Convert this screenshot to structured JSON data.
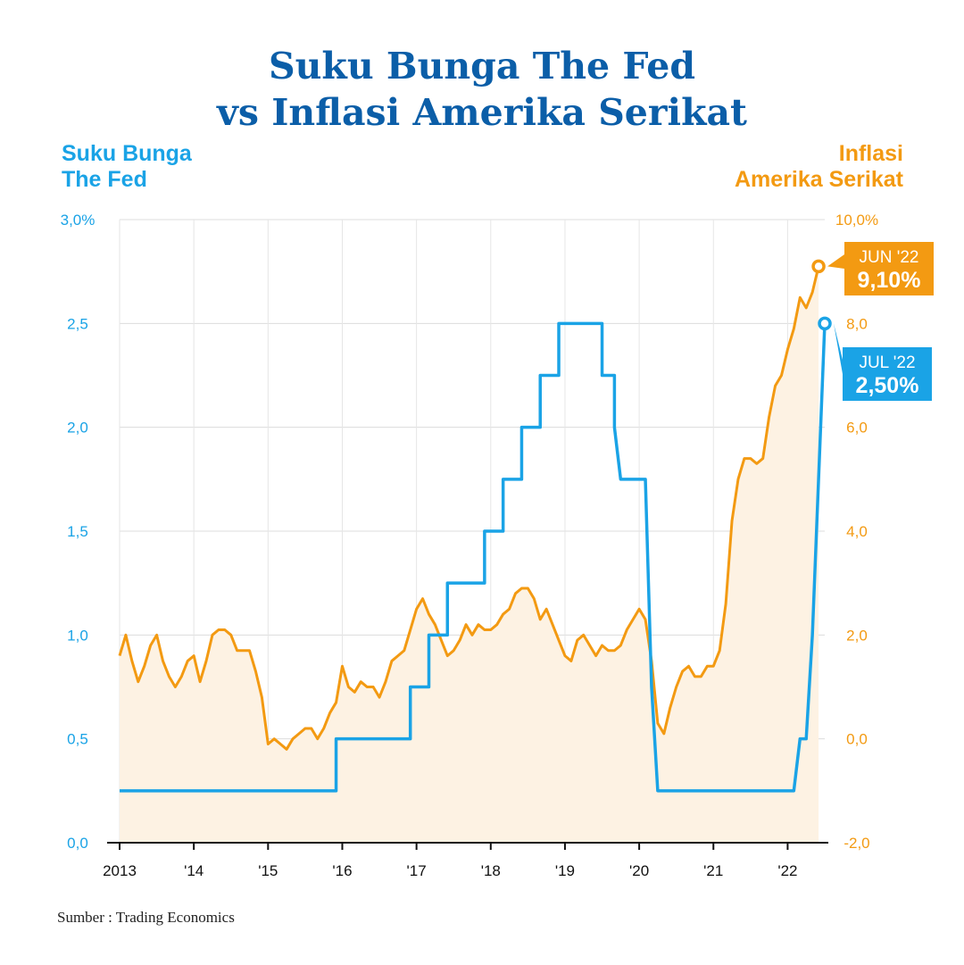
{
  "title_line1": "Suku Bunga The Fed",
  "title_line2": "vs Inflasi Amerika Serikat",
  "left_axis_title": [
    "Suku Bunga",
    "The Fed"
  ],
  "right_axis_title": [
    "Inflasi",
    "Amerika Serikat"
  ],
  "source": "Sumber : Trading Economics",
  "colors": {
    "fed": "#1aa3e6",
    "inflation": "#f39a12",
    "inflation_fill": "#fdf2e3",
    "title": "#0b5ea8"
  },
  "chart_data": {
    "type": "line",
    "x_start": "2013-01",
    "x_end": "2022-07",
    "x_ticks": [
      {
        "label": "2013",
        "year": 2013
      },
      {
        "label": "'14",
        "year": 2014
      },
      {
        "label": "'15",
        "year": 2015
      },
      {
        "label": "'16",
        "year": 2016
      },
      {
        "label": "'17",
        "year": 2017
      },
      {
        "label": "'18",
        "year": 2018
      },
      {
        "label": "'19",
        "year": 2019
      },
      {
        "label": "'20",
        "year": 2020
      },
      {
        "label": "'21",
        "year": 2021
      },
      {
        "label": "'22",
        "year": 2022
      }
    ],
    "y_left": {
      "ticks": [
        "0,0",
        "0,5",
        "1,0",
        "1,5",
        "2,0",
        "2,5",
        "3,0%"
      ],
      "ylim": [
        0,
        3
      ]
    },
    "y_right": {
      "ticks": [
        "-2,0",
        "0,0",
        "2,0",
        "4,0",
        "6,0",
        "8,0",
        "10,0%"
      ],
      "ylim": [
        -2,
        10
      ]
    },
    "grid": true,
    "series": [
      {
        "name": "Suku Bunga The Fed",
        "axis": "left",
        "points": [
          [
            "2013-01",
            0.25
          ],
          [
            "2015-12",
            0.25
          ],
          [
            "2015-12",
            0.5
          ],
          [
            "2016-12",
            0.5
          ],
          [
            "2016-12",
            0.75
          ],
          [
            "2017-03",
            0.75
          ],
          [
            "2017-03",
            1.0
          ],
          [
            "2017-06",
            1.0
          ],
          [
            "2017-06",
            1.25
          ],
          [
            "2017-12",
            1.25
          ],
          [
            "2017-12",
            1.5
          ],
          [
            "2018-03",
            1.5
          ],
          [
            "2018-03",
            1.75
          ],
          [
            "2018-06",
            1.75
          ],
          [
            "2018-06",
            2.0
          ],
          [
            "2018-09",
            2.0
          ],
          [
            "2018-09",
            2.25
          ],
          [
            "2018-12",
            2.25
          ],
          [
            "2018-12",
            2.5
          ],
          [
            "2019-07",
            2.5
          ],
          [
            "2019-07",
            2.25
          ],
          [
            "2019-09",
            2.25
          ],
          [
            "2019-09",
            2.0
          ],
          [
            "2019-10",
            1.75
          ],
          [
            "2020-02",
            1.75
          ],
          [
            "2020-03",
            0.75
          ],
          [
            "2020-04",
            0.25
          ],
          [
            "2022-02",
            0.25
          ],
          [
            "2022-03",
            0.5
          ],
          [
            "2022-04",
            0.5
          ],
          [
            "2022-05",
            1.0
          ],
          [
            "2022-06",
            1.75
          ],
          [
            "2022-07",
            2.5
          ]
        ]
      },
      {
        "name": "Inflasi Amerika Serikat",
        "axis": "right",
        "points": [
          [
            "2013-01",
            1.6
          ],
          [
            "2013-02",
            2.0
          ],
          [
            "2013-03",
            1.5
          ],
          [
            "2013-04",
            1.1
          ],
          [
            "2013-05",
            1.4
          ],
          [
            "2013-06",
            1.8
          ],
          [
            "2013-07",
            2.0
          ],
          [
            "2013-08",
            1.5
          ],
          [
            "2013-09",
            1.2
          ],
          [
            "2013-10",
            1.0
          ],
          [
            "2013-11",
            1.2
          ],
          [
            "2013-12",
            1.5
          ],
          [
            "2014-01",
            1.6
          ],
          [
            "2014-02",
            1.1
          ],
          [
            "2014-03",
            1.5
          ],
          [
            "2014-04",
            2.0
          ],
          [
            "2014-05",
            2.1
          ],
          [
            "2014-06",
            2.1
          ],
          [
            "2014-07",
            2.0
          ],
          [
            "2014-08",
            1.7
          ],
          [
            "2014-09",
            1.7
          ],
          [
            "2014-10",
            1.7
          ],
          [
            "2014-11",
            1.3
          ],
          [
            "2014-12",
            0.8
          ],
          [
            "2015-01",
            -0.1
          ],
          [
            "2015-02",
            0.0
          ],
          [
            "2015-03",
            -0.1
          ],
          [
            "2015-04",
            -0.2
          ],
          [
            "2015-05",
            0.0
          ],
          [
            "2015-06",
            0.1
          ],
          [
            "2015-07",
            0.2
          ],
          [
            "2015-08",
            0.2
          ],
          [
            "2015-09",
            0.0
          ],
          [
            "2015-10",
            0.2
          ],
          [
            "2015-11",
            0.5
          ],
          [
            "2015-12",
            0.7
          ],
          [
            "2016-01",
            1.4
          ],
          [
            "2016-02",
            1.0
          ],
          [
            "2016-03",
            0.9
          ],
          [
            "2016-04",
            1.1
          ],
          [
            "2016-05",
            1.0
          ],
          [
            "2016-06",
            1.0
          ],
          [
            "2016-07",
            0.8
          ],
          [
            "2016-08",
            1.1
          ],
          [
            "2016-09",
            1.5
          ],
          [
            "2016-10",
            1.6
          ],
          [
            "2016-11",
            1.7
          ],
          [
            "2016-12",
            2.1
          ],
          [
            "2017-01",
            2.5
          ],
          [
            "2017-02",
            2.7
          ],
          [
            "2017-03",
            2.4
          ],
          [
            "2017-04",
            2.2
          ],
          [
            "2017-05",
            1.9
          ],
          [
            "2017-06",
            1.6
          ],
          [
            "2017-07",
            1.7
          ],
          [
            "2017-08",
            1.9
          ],
          [
            "2017-09",
            2.2
          ],
          [
            "2017-10",
            2.0
          ],
          [
            "2017-11",
            2.2
          ],
          [
            "2017-12",
            2.1
          ],
          [
            "2018-01",
            2.1
          ],
          [
            "2018-02",
            2.2
          ],
          [
            "2018-03",
            2.4
          ],
          [
            "2018-04",
            2.5
          ],
          [
            "2018-05",
            2.8
          ],
          [
            "2018-06",
            2.9
          ],
          [
            "2018-07",
            2.9
          ],
          [
            "2018-08",
            2.7
          ],
          [
            "2018-09",
            2.3
          ],
          [
            "2018-10",
            2.5
          ],
          [
            "2018-11",
            2.2
          ],
          [
            "2018-12",
            1.9
          ],
          [
            "2019-01",
            1.6
          ],
          [
            "2019-02",
            1.5
          ],
          [
            "2019-03",
            1.9
          ],
          [
            "2019-04",
            2.0
          ],
          [
            "2019-05",
            1.8
          ],
          [
            "2019-06",
            1.6
          ],
          [
            "2019-07",
            1.8
          ],
          [
            "2019-08",
            1.7
          ],
          [
            "2019-09",
            1.7
          ],
          [
            "2019-10",
            1.8
          ],
          [
            "2019-11",
            2.1
          ],
          [
            "2019-12",
            2.3
          ],
          [
            "2020-01",
            2.5
          ],
          [
            "2020-02",
            2.3
          ],
          [
            "2020-03",
            1.5
          ],
          [
            "2020-04",
            0.3
          ],
          [
            "2020-05",
            0.1
          ],
          [
            "2020-06",
            0.6
          ],
          [
            "2020-07",
            1.0
          ],
          [
            "2020-08",
            1.3
          ],
          [
            "2020-09",
            1.4
          ],
          [
            "2020-10",
            1.2
          ],
          [
            "2020-11",
            1.2
          ],
          [
            "2020-12",
            1.4
          ],
          [
            "2021-01",
            1.4
          ],
          [
            "2021-02",
            1.7
          ],
          [
            "2021-03",
            2.6
          ],
          [
            "2021-04",
            4.2
          ],
          [
            "2021-05",
            5.0
          ],
          [
            "2021-06",
            5.4
          ],
          [
            "2021-07",
            5.4
          ],
          [
            "2021-08",
            5.3
          ],
          [
            "2021-09",
            5.4
          ],
          [
            "2021-10",
            6.2
          ],
          [
            "2021-11",
            6.8
          ],
          [
            "2021-12",
            7.0
          ],
          [
            "2022-01",
            7.5
          ],
          [
            "2022-02",
            7.9
          ],
          [
            "2022-03",
            8.5
          ],
          [
            "2022-04",
            8.3
          ],
          [
            "2022-05",
            8.6
          ],
          [
            "2022-06",
            9.1
          ]
        ]
      }
    ],
    "callouts": [
      {
        "series": "Inflasi Amerika Serikat",
        "label": "JUN '22",
        "value_text": "9,10%"
      },
      {
        "series": "Suku Bunga The Fed",
        "label": "JUL '22",
        "value_text": "2,50%"
      }
    ]
  }
}
